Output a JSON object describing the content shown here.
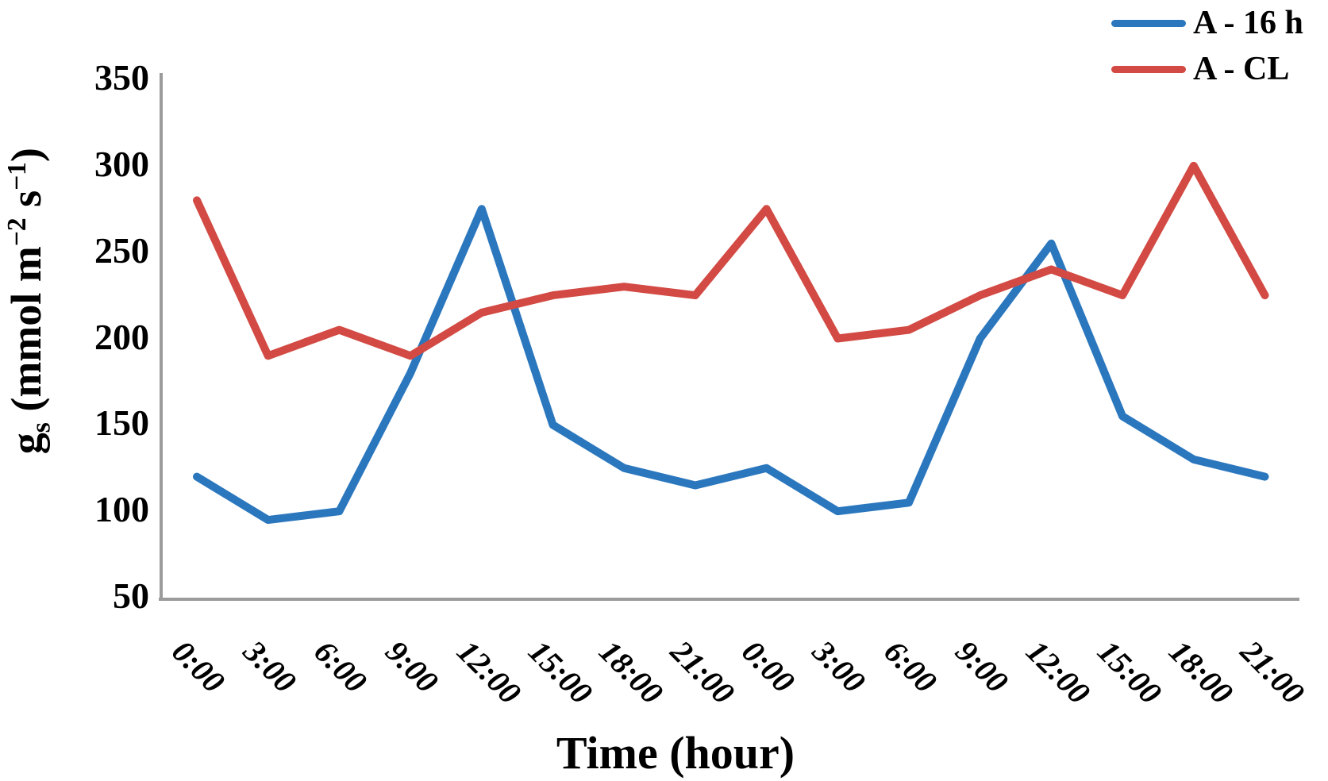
{
  "chart_data": {
    "type": "line",
    "title": "",
    "xlabel": "Time (hour)",
    "ylabel": "gs (mmol m−2 s−1)",
    "ylabel_parts": {
      "base": "g",
      "sub": "s",
      "unit_pre": " (mmol m",
      "sup1": "−2",
      "unit_mid": " s",
      "sup2": "−1",
      "unit_post": ")"
    },
    "categories": [
      "0:00",
      "3:00",
      "6:00",
      "9:00",
      "12:00",
      "15:00",
      "18:00",
      "21:00",
      "0:00",
      "3:00",
      "6:00",
      "9:00",
      "12:00",
      "15:00",
      "18:00",
      "21:00"
    ],
    "series": [
      {
        "name": "A - 16 h",
        "color": "#2B77BE",
        "values": [
          120,
          95,
          100,
          180,
          275,
          150,
          125,
          115,
          125,
          100,
          105,
          200,
          255,
          155,
          130,
          120
        ]
      },
      {
        "name": "A - CL",
        "color": "#D24A43",
        "values": [
          280,
          190,
          205,
          190,
          215,
          225,
          230,
          225,
          275,
          200,
          205,
          225,
          240,
          225,
          300,
          225
        ]
      }
    ],
    "ylim": [
      50,
      350
    ],
    "yticks": [
      350,
      300,
      250,
      200,
      150,
      100,
      50
    ],
    "grid": false,
    "legend_position": "top-right",
    "axis_color": "#9B9B9B",
    "line_width": 10
  }
}
